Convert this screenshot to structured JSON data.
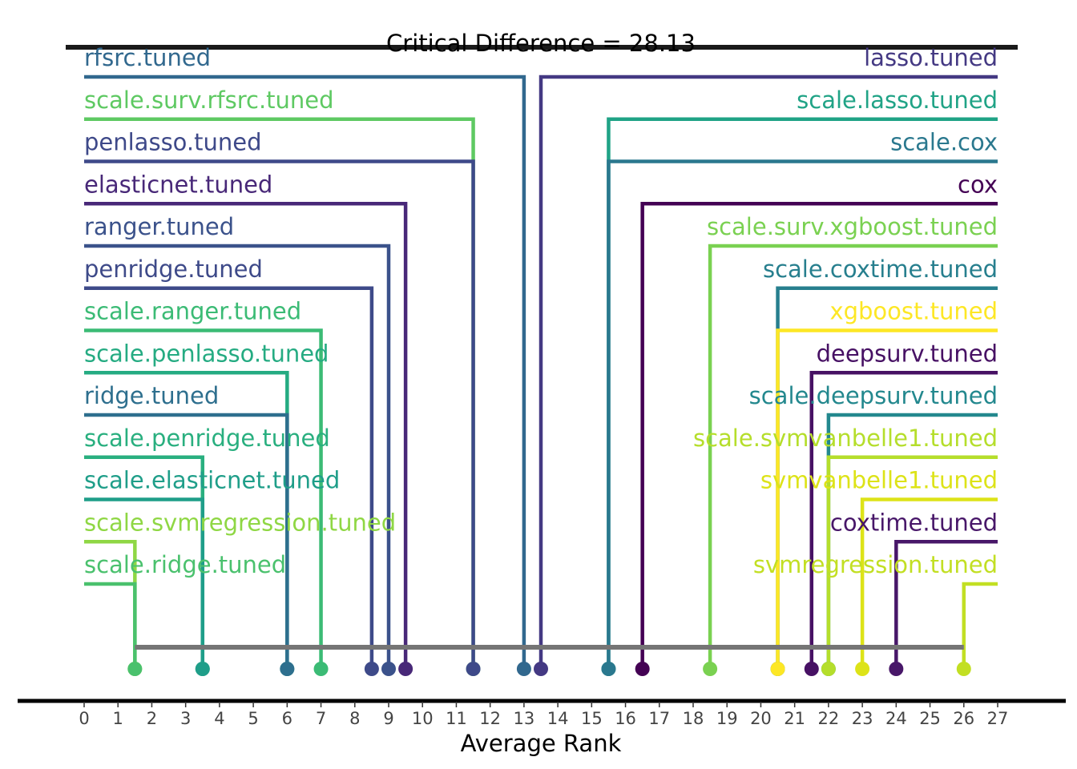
{
  "chart_data": {
    "type": "critical-difference",
    "title": "Critical Difference = 28.13",
    "xlabel": "Average Rank",
    "xlim": [
      0,
      27
    ],
    "ticks": [
      0,
      1,
      2,
      3,
      4,
      5,
      6,
      7,
      8,
      9,
      10,
      11,
      12,
      13,
      14,
      15,
      16,
      17,
      18,
      19,
      20,
      21,
      22,
      23,
      24,
      25,
      26,
      27
    ],
    "cd_bar": [
      1.5,
      26
    ],
    "left": [
      {
        "name": "rfsrc.tuned",
        "rank": 13.0,
        "color": "#31688e"
      },
      {
        "name": "scale.surv.rfsrc.tuned",
        "rank": 11.5,
        "color": "#5ec962"
      },
      {
        "name": "penlasso.tuned",
        "rank": 11.5,
        "color": "#3e4989"
      },
      {
        "name": "elasticnet.tuned",
        "rank": 9.5,
        "color": "#482878"
      },
      {
        "name": "ranger.tuned",
        "rank": 9.0,
        "color": "#3b528b"
      },
      {
        "name": "penridge.tuned",
        "rank": 8.5,
        "color": "#3e4a89"
      },
      {
        "name": "scale.ranger.tuned",
        "rank": 7.0,
        "color": "#3bbb75"
      },
      {
        "name": "scale.penlasso.tuned",
        "rank": 6.0,
        "color": "#25ab82"
      },
      {
        "name": "ridge.tuned",
        "rank": 6.0,
        "color": "#2e6f8e"
      },
      {
        "name": "scale.penridge.tuned",
        "rank": 3.5,
        "color": "#29af7f"
      },
      {
        "name": "scale.elasticnet.tuned",
        "rank": 3.5,
        "color": "#1f9e89"
      },
      {
        "name": "scale.svmregression.tuned",
        "rank": 1.5,
        "color": "#8fd744"
      },
      {
        "name": "scale.ridge.tuned",
        "rank": 1.5,
        "color": "#4ac16d"
      }
    ],
    "right": [
      {
        "name": "lasso.tuned",
        "rank": 13.5,
        "color": "#443983"
      },
      {
        "name": "scale.lasso.tuned",
        "rank": 15.5,
        "color": "#20a386"
      },
      {
        "name": "scale.cox",
        "rank": 15.5,
        "color": "#2a788e"
      },
      {
        "name": "cox",
        "rank": 16.5,
        "color": "#440154"
      },
      {
        "name": "scale.surv.xgboost.tuned",
        "rank": 18.5,
        "color": "#7ad151"
      },
      {
        "name": "scale.coxtime.tuned",
        "rank": 20.5,
        "color": "#277f8e"
      },
      {
        "name": "xgboost.tuned",
        "rank": 20.5,
        "color": "#fde725"
      },
      {
        "name": "deepsurv.tuned",
        "rank": 21.5,
        "color": "#471164"
      },
      {
        "name": "scale.deepsurv.tuned",
        "rank": 22.0,
        "color": "#23888e"
      },
      {
        "name": "scale.svmvanbelle1.tuned",
        "rank": 22.0,
        "color": "#b5de2b"
      },
      {
        "name": "svmvanbelle1.tuned",
        "rank": 23.0,
        "color": "#dde318"
      },
      {
        "name": "coxtime.tuned",
        "rank": 24.0,
        "color": "#481769"
      },
      {
        "name": "svmregression.tuned",
        "rank": 26.0,
        "color": "#c2df23"
      }
    ]
  }
}
